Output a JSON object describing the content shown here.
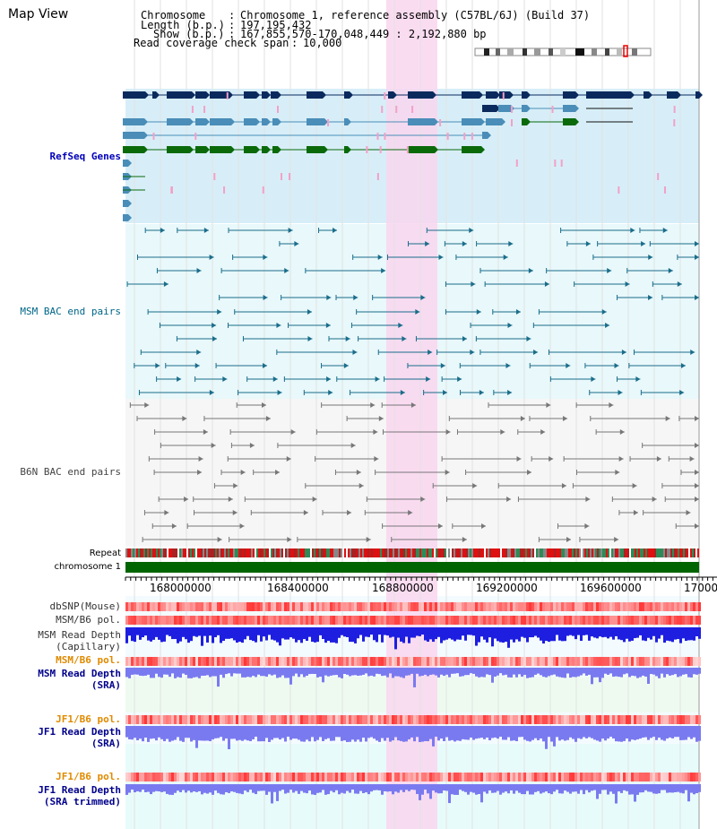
{
  "view": {
    "title": "Map View",
    "header": {
      "chromosome_label": "Chromosome",
      "chromosome_value": "Chromosome 1, reference assembly (C57BL/6J) (Build 37)",
      "length_label": "Length (b.p.)",
      "length_value": "197,195,432",
      "show_label": "Show (b.p.)",
      "show_value": "167,855,570-170,048,449 : 2,192,880 bp",
      "coverage_label": "Read coverage check span",
      "coverage_value": "10,000"
    }
  },
  "tracks": {
    "refseq": "RefSeq Genes",
    "msm_bac": "MSM BAC end pairs",
    "b6n_bac": "B6N BAC end pairs",
    "repeat": "Repeat",
    "chromosome": "chromosome 1",
    "dbsnp": "dbSNP(Mouse)",
    "msm_b6_pol": "MSM/B6 pol.",
    "msm_read_depth_cap_1": "MSM Read Depth",
    "msm_read_depth_cap_2": "(Capillary)",
    "msm_b6_pol_2": "MSM/B6 pol.",
    "msm_read_depth_sra_1": "MSM Read Depth",
    "msm_read_depth_sra_2": "(SRA)",
    "jf1_b6_pol": "JF1/B6 pol.",
    "jf1_read_depth_sra_1": "JF1 Read Depth",
    "jf1_read_depth_sra_2": "(SRA)",
    "jf1_b6_pol_2": "JF1/B6 pol.",
    "jf1_read_depth_trim_1": "JF1 Read Depth",
    "jf1_read_depth_trim_2": "(SRA trimmed)"
  },
  "axis": {
    "ticks": [
      "168000000",
      "168400000",
      "168800000",
      "169200000",
      "169600000",
      "17000"
    ]
  },
  "colors": {
    "highlight": "#f9d6ee",
    "refseq_bg": "#d7eef8",
    "msm_bg": "#e8f8fb",
    "b6n_bg": "#f6f6f6",
    "gene_dark": "#0a2a5e",
    "gene_mid": "#4a8db8",
    "gene_green": "#0a6a0a",
    "bac_teal": "#1a6d8a",
    "bac_gray": "#777777",
    "chrom_green": "#006400",
    "depth_blue": "#1e1ee0",
    "depth_lilac": "#7a7af0",
    "pol_red": "#ee3333"
  }
}
